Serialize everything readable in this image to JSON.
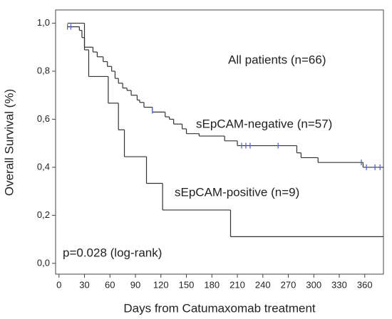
{
  "chart_data": {
    "type": "step",
    "x_label": "Days from Catumaxomab treatment",
    "y_label": "Overall Survival (%)",
    "annotations": [
      "All patients (n=66)",
      "p=0.028 (log-rank)"
    ],
    "xlim": [
      -4,
      382
    ],
    "xticks": [
      0,
      30,
      60,
      90,
      120,
      150,
      180,
      210,
      240,
      270,
      300,
      330,
      360
    ],
    "ylim": [
      -0.045,
      1.055
    ],
    "yticks": [
      {
        "value": 0,
        "label": "0,0"
      },
      {
        "value": 0.2,
        "label": "0,2"
      },
      {
        "value": 0.4,
        "label": "0,4"
      },
      {
        "value": 0.6,
        "label": "0,6"
      },
      {
        "value": 0.8,
        "label": "0,8"
      },
      {
        "value": 1,
        "label": "1,0"
      }
    ],
    "grid": false,
    "censor_color": "#5566cc",
    "series": [
      {
        "name": "sEpCAM-negative (n=57)",
        "color": "#333333",
        "x": [
          10,
          24,
          27,
          30,
          40,
          45,
          52,
          57,
          62,
          66,
          70,
          75,
          80,
          85,
          92,
          95,
          100,
          110,
          125,
          130,
          135,
          145,
          150,
          165,
          195,
          210,
          280,
          285,
          305,
          358,
          382
        ],
        "values": [
          0.985,
          0.97,
          0.94,
          0.9,
          0.88,
          0.86,
          0.84,
          0.82,
          0.8,
          0.77,
          0.75,
          0.73,
          0.72,
          0.7,
          0.68,
          0.67,
          0.65,
          0.63,
          0.61,
          0.6,
          0.58,
          0.56,
          0.54,
          0.53,
          0.51,
          0.49,
          0.46,
          0.44,
          0.42,
          0.4,
          0.4
        ],
        "censor_x": [
          10,
          14,
          110,
          215,
          220,
          225,
          258,
          356,
          362,
          372,
          378
        ],
        "censor_y": [
          0.985,
          0.985,
          0.635,
          0.49,
          0.49,
          0.49,
          0.49,
          0.42,
          0.4,
          0.4,
          0.4
        ]
      },
      {
        "name": "sEpCAM-positive (n=9)",
        "color": "#333333",
        "x": [
          10,
          30,
          35,
          58,
          70,
          77,
          103,
          122,
          202,
          382
        ],
        "values": [
          1,
          0.889,
          0.778,
          0.667,
          0.556,
          0.444,
          0.333,
          0.222,
          0.111,
          0.111
        ]
      }
    ]
  }
}
